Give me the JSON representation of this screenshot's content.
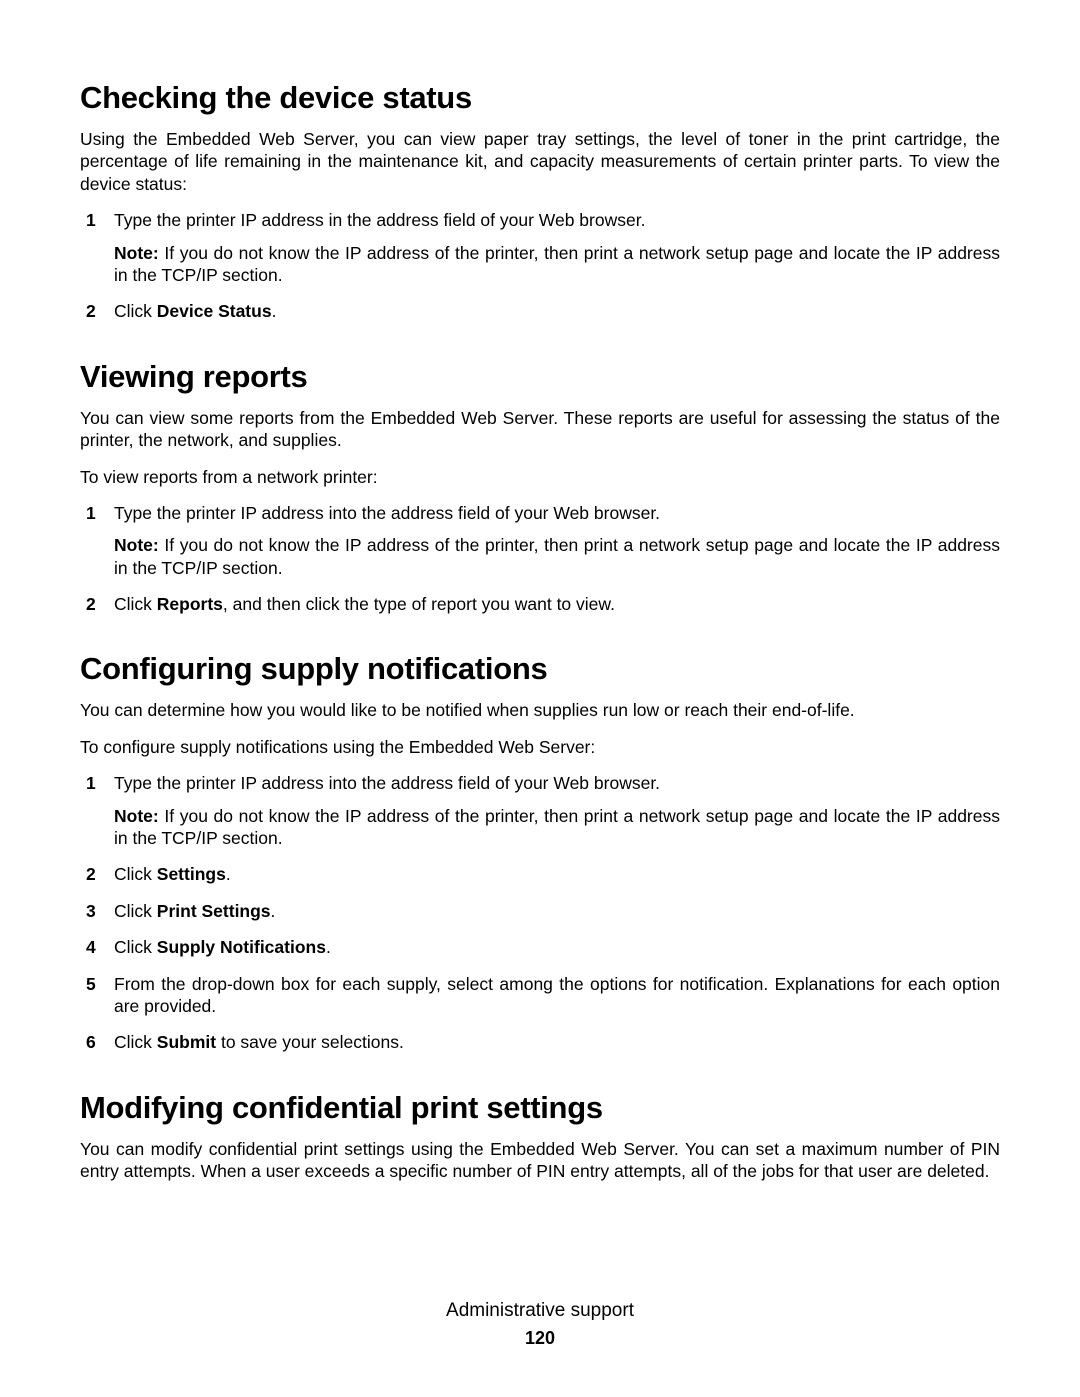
{
  "footer": {
    "title": "Administrative support",
    "page": "120"
  },
  "sections": {
    "s1": {
      "heading": "Checking the device status",
      "intro": "Using the Embedded Web Server, you can view paper tray settings, the level of toner in the print cartridge, the percentage of life remaining in the maintenance kit, and capacity measurements of certain printer parts. To view the device status:",
      "step1": "Type the printer IP address in the address field of your Web browser.",
      "note1_label": "Note:",
      "note1_body": " If you do not know the IP address of the printer, then print a network setup page and locate the IP address in the TCP/IP section.",
      "step2_pre": "Click ",
      "step2_bold": "Device Status",
      "step2_post": "."
    },
    "s2": {
      "heading": "Viewing reports",
      "intro": "You can view some reports from the Embedded Web Server. These reports are useful for assessing the status of the printer, the network, and supplies.",
      "lead": "To view reports from a network printer:",
      "step1": "Type the printer IP address into the address field of your Web browser.",
      "note1_label": "Note:",
      "note1_body": " If you do not know the IP address of the printer, then print a network setup page and locate the IP address in the TCP/IP section.",
      "step2_pre": "Click ",
      "step2_bold": "Reports",
      "step2_post": ", and then click the type of report you want to view."
    },
    "s3": {
      "heading": "Configuring supply notifications",
      "intro": "You can determine how you would like to be notified when supplies run low or reach their end-of-life.",
      "lead": "To configure supply notifications using the Embedded Web Server:",
      "step1": "Type the printer IP address into the address field of your Web browser.",
      "note1_label": "Note:",
      "note1_body": " If you do not know the IP address of the printer, then print a network setup page and locate the IP address in the TCP/IP section.",
      "step2_pre": "Click ",
      "step2_bold": "Settings",
      "step2_post": ".",
      "step3_pre": "Click ",
      "step3_bold": "Print Settings",
      "step3_post": ".",
      "step4_pre": "Click ",
      "step4_bold": "Supply Notifications",
      "step4_post": ".",
      "step5": "From the drop-down box for each supply, select among the options for notification. Explanations for each option are provided.",
      "step6_pre": "Click ",
      "step6_bold": "Submit",
      "step6_post": " to save your selections."
    },
    "s4": {
      "heading": "Modifying confidential print settings",
      "intro": "You can modify confidential print settings using the Embedded Web Server. You can set a maximum number of PIN entry attempts. When a user exceeds a specific number of PIN entry attempts, all of the jobs for that user are deleted."
    }
  }
}
